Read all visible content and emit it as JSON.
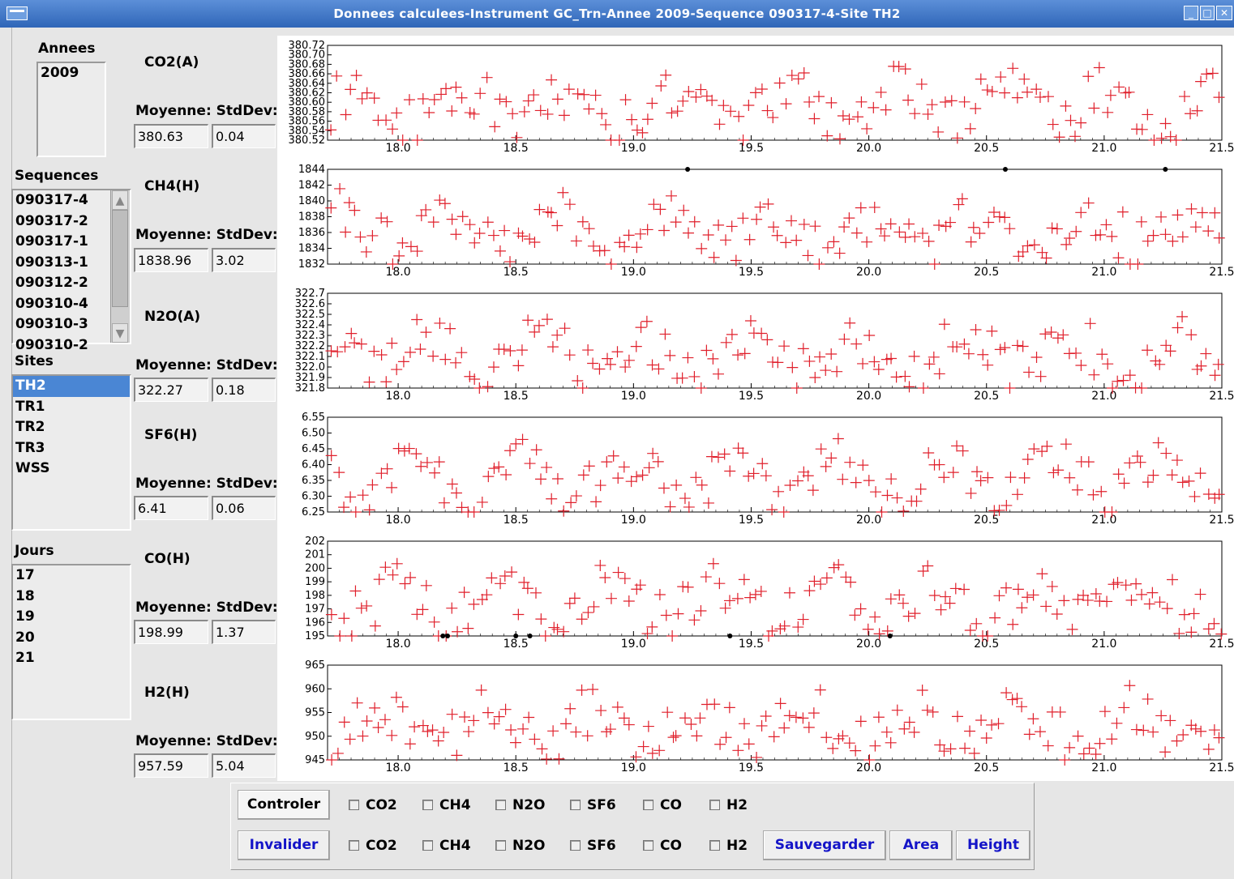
{
  "window": {
    "title": "Donnees calculees-Instrument GC_Trn-Annee 2009-Sequence 090317-4-Site TH2"
  },
  "annees": {
    "label": "Annees",
    "items": [
      "2009"
    ]
  },
  "sequences": {
    "label": "Sequences",
    "items": [
      "090317-4",
      "090317-2",
      "090317-1",
      "090313-1",
      "090312-2",
      "090310-4",
      "090310-3",
      "090310-2"
    ]
  },
  "sites": {
    "label": "Sites",
    "items": [
      "TH2",
      "TR1",
      "TR2",
      "TR3",
      "WSS"
    ],
    "selected": "TH2"
  },
  "jours": {
    "label": "Jours",
    "items": [
      "17",
      "18",
      "19",
      "20",
      "21"
    ]
  },
  "gases": [
    {
      "name": "CO2(A)",
      "moyenne_label": "Moyenne:",
      "stddev_label": "StdDev:",
      "moyenne": "380.63",
      "stddev": "0.04"
    },
    {
      "name": "CH4(H)",
      "moyenne_label": "Moyenne:",
      "stddev_label": "StdDev:",
      "moyenne": "1838.96",
      "stddev": "3.02"
    },
    {
      "name": "N2O(A)",
      "moyenne_label": "Moyenne:",
      "stddev_label": "StdDev:",
      "moyenne": "322.27",
      "stddev": "0.18"
    },
    {
      "name": "SF6(H)",
      "moyenne_label": "Moyenne:",
      "stddev_label": "StdDev:",
      "moyenne": "6.41",
      "stddev": "0.06"
    },
    {
      "name": "CO(H)",
      "moyenne_label": "Moyenne:",
      "stddev_label": "StdDev:",
      "moyenne": "198.99",
      "stddev": "1.37"
    },
    {
      "name": "H2(H)",
      "moyenne_label": "Moyenne:",
      "stddev_label": "StdDev:",
      "moyenne": "957.59",
      "stddev": "5.04"
    }
  ],
  "controls": {
    "controler_label": "Controler",
    "invalider_label": "Invalider",
    "check_labels": [
      "CO2",
      "CH4",
      "N2O",
      "SF6",
      "CO",
      "H2"
    ],
    "sauvegarder_label": "Sauvegarder",
    "area_label": "Area",
    "height_label": "Height"
  },
  "colors": {
    "marker_valid": "#e0202c",
    "marker_invalid": "#000000",
    "selection": "#4a86d4",
    "title_bar": "#3d74c6",
    "button_text": "#1414c8"
  },
  "chart_data": [
    {
      "type": "scatter",
      "series_name": "CO2(A)",
      "xlim": [
        17.7,
        21.5
      ],
      "ylim": [
        380.52,
        380.72
      ],
      "x_ticks": [
        "18.0",
        "18.5",
        "19.0",
        "19.5",
        "20.0",
        "20.5",
        "21.0",
        "21.5"
      ],
      "y_ticks": [
        "380.72",
        "380.70",
        "380.68",
        "380.66",
        "380.64",
        "380.62",
        "380.60",
        "380.58",
        "380.56",
        "380.54",
        "380.52"
      ],
      "invalid_x": [],
      "marker": "plus"
    },
    {
      "type": "scatter",
      "series_name": "CH4(H)",
      "xlim": [
        17.7,
        21.5
      ],
      "ylim": [
        1832,
        1844
      ],
      "x_ticks": [
        "18.0",
        "18.5",
        "19.0",
        "19.5",
        "20.0",
        "20.5",
        "21.0",
        "21.5"
      ],
      "y_ticks": [
        "1844",
        "1842",
        "1840",
        "1838",
        "1836",
        "1834",
        "1832"
      ],
      "invalid_x": [
        19.23,
        20.58,
        21.26
      ],
      "marker": "plus"
    },
    {
      "type": "scatter",
      "series_name": "N2O(A)",
      "xlim": [
        17.7,
        21.5
      ],
      "ylim": [
        321.8,
        322.7
      ],
      "x_ticks": [
        "18.0",
        "18.5",
        "19.0",
        "19.5",
        "20.0",
        "20.5",
        "21.0",
        "21.5"
      ],
      "y_ticks": [
        "322.7",
        "322.6",
        "322.5",
        "322.4",
        "322.3",
        "322.2",
        "322.1",
        "322.0",
        "321.9",
        "321.8"
      ],
      "invalid_x": [],
      "marker": "plus"
    },
    {
      "type": "scatter",
      "series_name": "SF6(H)",
      "xlim": [
        17.7,
        21.5
      ],
      "ylim": [
        6.25,
        6.55
      ],
      "x_ticks": [
        "18.0",
        "18.5",
        "19.0",
        "19.5",
        "20.0",
        "20.5",
        "21.0",
        "21.5"
      ],
      "y_ticks": [
        "6.55",
        "6.50",
        "6.45",
        "6.40",
        "6.35",
        "6.30",
        "6.25"
      ],
      "invalid_x": [],
      "marker": "plus"
    },
    {
      "type": "scatter",
      "series_name": "CO(H)",
      "xlim": [
        17.7,
        21.5
      ],
      "ylim": [
        195,
        202
      ],
      "x_ticks": [
        "18.0",
        "18.5",
        "19.0",
        "19.5",
        "20.0",
        "20.5",
        "21.0",
        "21.5"
      ],
      "y_ticks": [
        "202",
        "201",
        "200",
        "199",
        "198",
        "197",
        "196",
        "195"
      ],
      "invalid_x": [
        18.19,
        18.21,
        18.5,
        18.56,
        19.41,
        20.09
      ],
      "marker": "plus"
    },
    {
      "type": "scatter",
      "series_name": "H2(H)",
      "xlim": [
        17.7,
        21.5
      ],
      "ylim": [
        945,
        965
      ],
      "x_ticks": [
        "18.0",
        "18.5",
        "19.0",
        "19.5",
        "20.0",
        "20.5",
        "21.0",
        "21.5"
      ],
      "y_ticks": [
        "965",
        "960",
        "955",
        "950",
        "945"
      ],
      "invalid_x": [],
      "marker": "plus"
    }
  ]
}
